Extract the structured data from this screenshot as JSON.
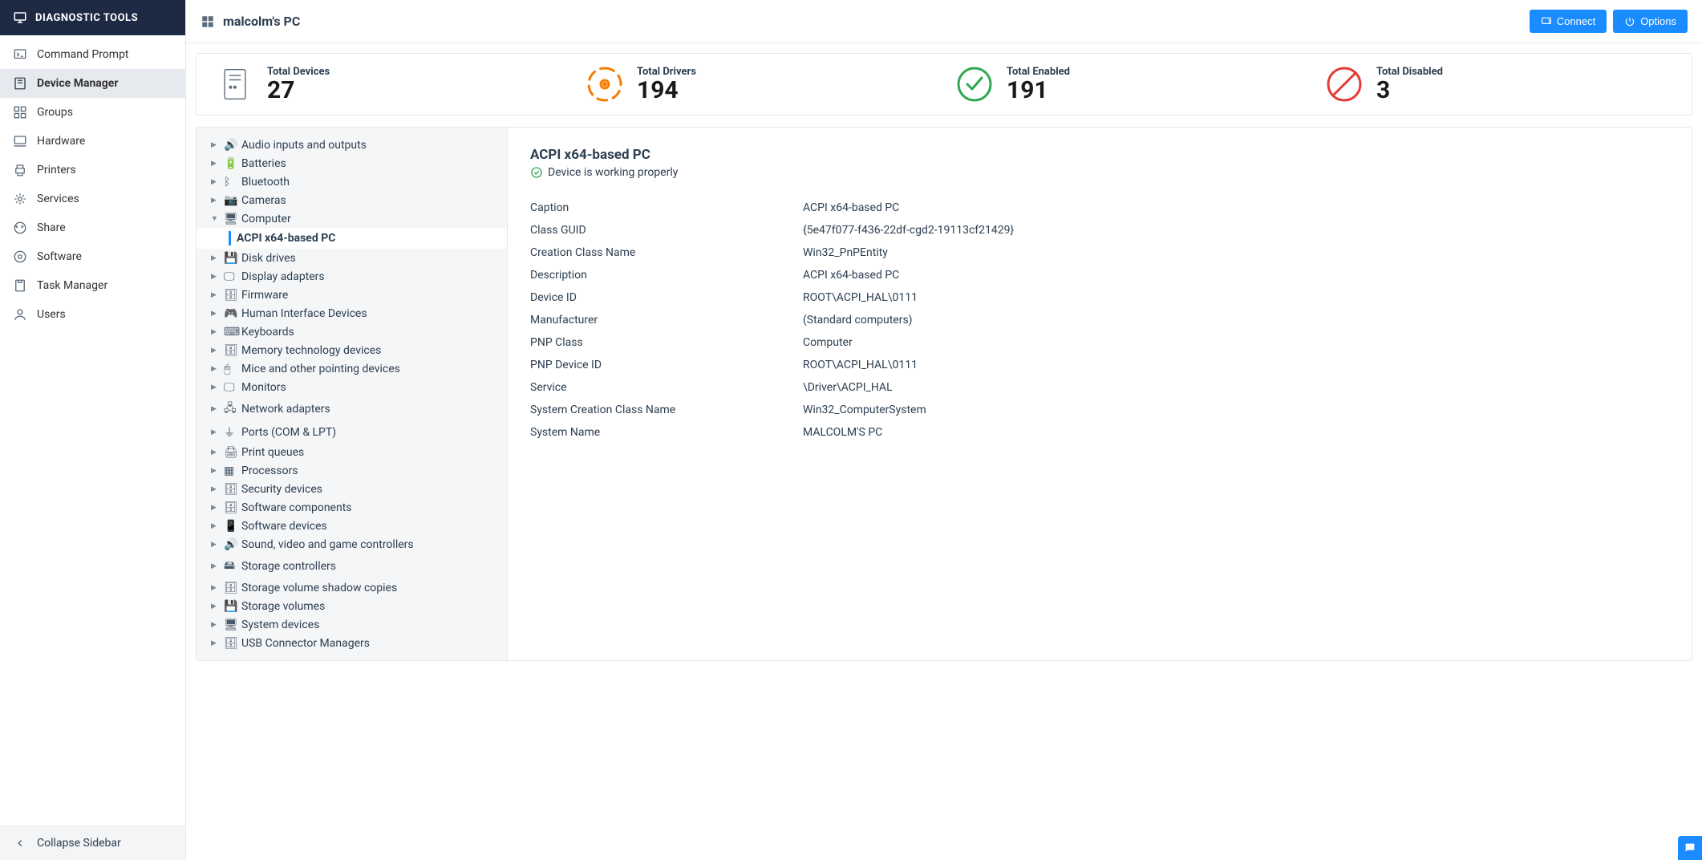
{
  "colors": {
    "sidebar_header_bg": "#1e2a44",
    "accent": "#1a8cff",
    "orange": "#f57c00",
    "green": "#2fa84f",
    "red": "#e53935",
    "border": "#e4e7eb",
    "tree_bg": "#f5f6f8"
  },
  "sidebar": {
    "title": "DIAGNOSTIC TOOLS",
    "items": [
      {
        "label": "Command Prompt",
        "icon": "terminal"
      },
      {
        "label": "Device Manager",
        "icon": "device",
        "active": true
      },
      {
        "label": "Groups",
        "icon": "grid"
      },
      {
        "label": "Hardware",
        "icon": "hardware"
      },
      {
        "label": "Printers",
        "icon": "printer"
      },
      {
        "label": "Services",
        "icon": "services"
      },
      {
        "label": "Share",
        "icon": "share"
      },
      {
        "label": "Software",
        "icon": "software"
      },
      {
        "label": "Task Manager",
        "icon": "task"
      },
      {
        "label": "Users",
        "icon": "user"
      }
    ],
    "collapse_label": "Collapse Sidebar"
  },
  "topbar": {
    "title": "malcolm's PC",
    "connect_label": "Connect",
    "options_label": "Options"
  },
  "stats": [
    {
      "label": "Total Devices",
      "value": "27",
      "icon": "device-box",
      "color": "#5a6b7b"
    },
    {
      "label": "Total Drivers",
      "value": "194",
      "icon": "disc",
      "color": "#f57c00"
    },
    {
      "label": "Total Enabled",
      "value": "191",
      "icon": "check-circle",
      "color": "#2fa84f"
    },
    {
      "label": "Total Disabled",
      "value": "3",
      "icon": "no-circle",
      "color": "#e53935"
    }
  ],
  "tree": [
    {
      "label": "Audio inputs and outputs",
      "icon": "🔊"
    },
    {
      "label": "Batteries",
      "icon": "🔋"
    },
    {
      "label": "Bluetooth",
      "icon": "ᛒ"
    },
    {
      "label": "Cameras",
      "icon": "📷"
    },
    {
      "label": "Computer",
      "icon": "🖥",
      "expanded": true,
      "child": "ACPI x64-based PC"
    },
    {
      "label": "Disk drives",
      "icon": "💾"
    },
    {
      "label": "Display adapters",
      "icon": "🖵"
    },
    {
      "label": "Firmware",
      "icon": "🗄"
    },
    {
      "label": "Human Interface Devices",
      "icon": "🎮"
    },
    {
      "label": "Keyboards",
      "icon": "⌨"
    },
    {
      "label": "Memory technology devices",
      "icon": "🗄"
    },
    {
      "label": "Mice and other pointing devices",
      "icon": "🖱"
    },
    {
      "label": "Monitors",
      "icon": "🖵"
    },
    {
      "label": "Network adapters",
      "icon": "🖧"
    },
    {
      "label": "Ports (COM & LPT)",
      "icon": "⏚"
    },
    {
      "label": "Print queues",
      "icon": "🖨"
    },
    {
      "label": "Processors",
      "icon": "▦"
    },
    {
      "label": "Security devices",
      "icon": "🗄"
    },
    {
      "label": "Software components",
      "icon": "🗄"
    },
    {
      "label": "Software devices",
      "icon": "📱"
    },
    {
      "label": "Sound, video and game controllers",
      "icon": "🔊"
    },
    {
      "label": "Storage controllers",
      "icon": "🖴"
    },
    {
      "label": "Storage volume shadow copies",
      "icon": "🗄"
    },
    {
      "label": "Storage volumes",
      "icon": "💾"
    },
    {
      "label": "System devices",
      "icon": "🖥"
    },
    {
      "label": "USB Connector Managers",
      "icon": "🗄"
    }
  ],
  "details": {
    "title": "ACPI x64-based PC",
    "status": "Device is working properly",
    "properties": [
      {
        "k": "Caption",
        "v": "ACPI x64-based PC"
      },
      {
        "k": "Class GUID",
        "v": "{5e47f077-f436-22df-cgd2-19113cf21429}"
      },
      {
        "k": "Creation Class Name",
        "v": "Win32_PnPEntity"
      },
      {
        "k": "Description",
        "v": "ACPI x64-based PC"
      },
      {
        "k": "Device ID",
        "v": "ROOT\\ACPI_HAL\\0111"
      },
      {
        "k": "Manufacturer",
        "v": "(Standard computers)"
      },
      {
        "k": "PNP Class",
        "v": "Computer"
      },
      {
        "k": "PNP Device ID",
        "v": "ROOT\\ACPI_HAL\\0111"
      },
      {
        "k": "Service",
        "v": "\\Driver\\ACPI_HAL"
      },
      {
        "k": "System Creation Class Name",
        "v": "Win32_ComputerSystem"
      },
      {
        "k": "System Name",
        "v": "MALCOLM'S PC"
      }
    ]
  }
}
